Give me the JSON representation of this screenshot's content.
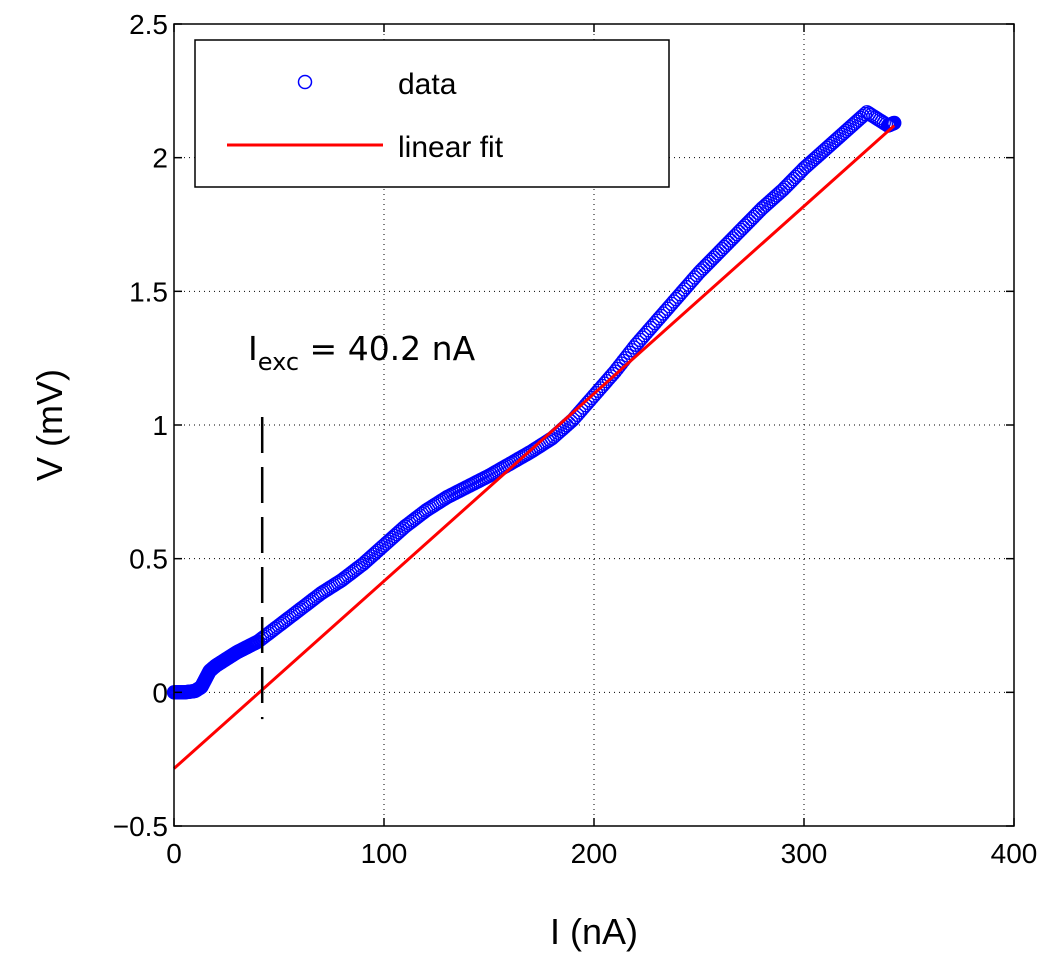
{
  "chart_data": {
    "type": "scatter",
    "title": "",
    "xlabel": "I (nA)",
    "ylabel": "V (mV)",
    "xlim": [
      0,
      400
    ],
    "ylim": [
      -0.5,
      2.5
    ],
    "xticks": [
      0,
      100,
      200,
      300,
      400
    ],
    "xtick_labels": [
      "0",
      "100",
      "200",
      "300",
      "400"
    ],
    "yticks": [
      -0.5,
      0,
      0.5,
      1,
      1.5,
      2,
      2.5
    ],
    "ytick_labels": [
      "−0.5",
      "0",
      "0.5",
      "1",
      "1.5",
      "2",
      "2.5"
    ],
    "grid": true,
    "legend_position": "top-left",
    "series": [
      {
        "name": "data",
        "kind": "scatter",
        "marker": "circle",
        "color": "#0000ff",
        "points": [
          [
            0,
            0.0
          ],
          [
            5,
            0.0
          ],
          [
            10,
            0.005
          ],
          [
            13,
            0.02
          ],
          [
            15,
            0.05
          ],
          [
            17,
            0.08
          ],
          [
            20,
            0.1
          ],
          [
            25,
            0.125
          ],
          [
            30,
            0.15
          ],
          [
            35,
            0.17
          ],
          [
            40,
            0.19
          ],
          [
            50,
            0.25
          ],
          [
            60,
            0.31
          ],
          [
            70,
            0.37
          ],
          [
            80,
            0.42
          ],
          [
            90,
            0.48
          ],
          [
            100,
            0.55
          ],
          [
            110,
            0.62
          ],
          [
            120,
            0.68
          ],
          [
            130,
            0.73
          ],
          [
            140,
            0.77
          ],
          [
            150,
            0.81
          ],
          [
            160,
            0.855
          ],
          [
            170,
            0.9
          ],
          [
            180,
            0.95
          ],
          [
            190,
            1.02
          ],
          [
            200,
            1.11
          ],
          [
            210,
            1.2
          ],
          [
            220,
            1.3
          ],
          [
            230,
            1.39
          ],
          [
            240,
            1.48
          ],
          [
            250,
            1.57
          ],
          [
            260,
            1.65
          ],
          [
            270,
            1.73
          ],
          [
            280,
            1.81
          ],
          [
            290,
            1.88
          ],
          [
            300,
            1.96
          ],
          [
            310,
            2.03
          ],
          [
            320,
            2.1
          ],
          [
            330,
            2.17
          ],
          [
            340,
            2.12
          ],
          [
            343,
            2.13
          ]
        ]
      },
      {
        "name": "linear fit",
        "kind": "line",
        "color": "#ff0000",
        "points": [
          [
            0,
            -0.285
          ],
          [
            343,
            2.12
          ]
        ]
      }
    ],
    "vline": {
      "x": 42,
      "y_from": -0.1,
      "y_to": 1.03,
      "style": "dashed",
      "color": "#000000"
    },
    "annotation": {
      "x": 36,
      "y": 1.3,
      "main": "I",
      "sub": "exc",
      "rest": " = 40.2 nA"
    }
  }
}
